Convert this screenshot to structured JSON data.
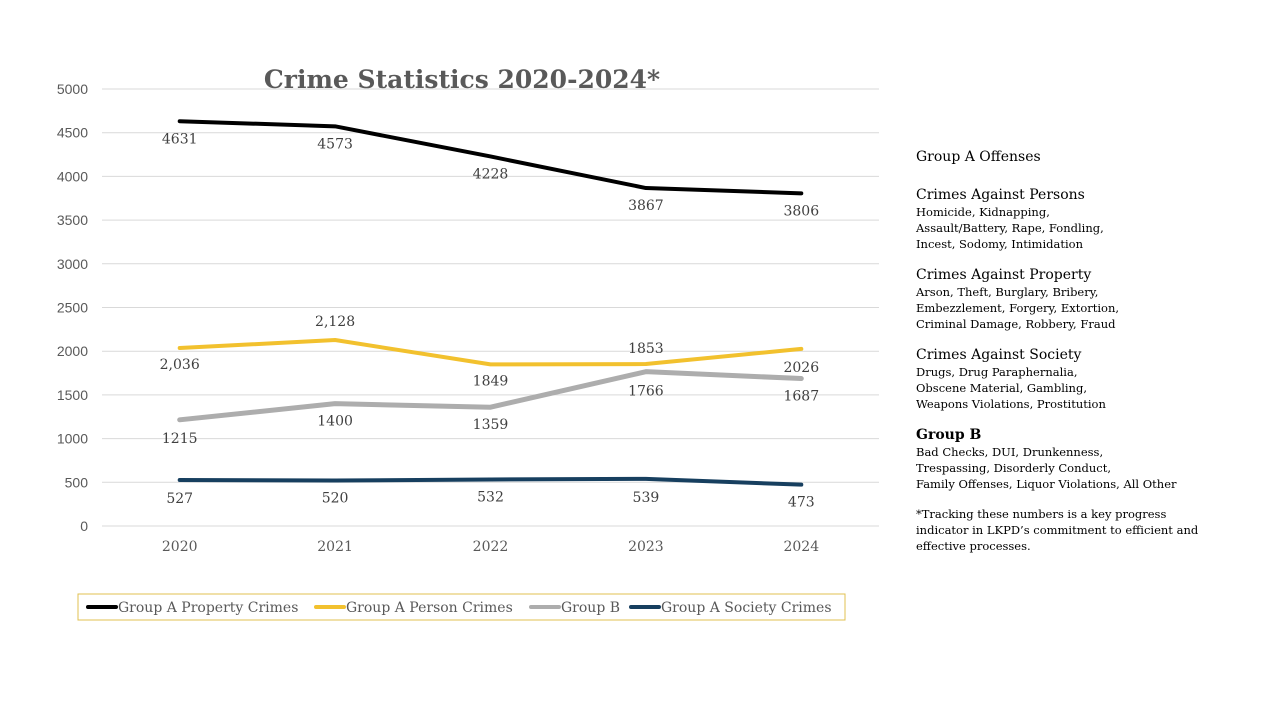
{
  "chart_data": {
    "type": "line",
    "title": "Crime Statistics 2020-2024*",
    "categories": [
      "2020",
      "2021",
      "2022",
      "2023",
      "2024"
    ],
    "yticks": [
      "0",
      "500",
      "1000",
      "1500",
      "2000",
      "2500",
      "3000",
      "3500",
      "4000",
      "4500",
      "5000"
    ],
    "ylim": [
      0,
      5000
    ],
    "grid": true,
    "legend_position": "bottom",
    "series": [
      {
        "name": "Group A Property Crimes",
        "color": "#000000",
        "values": [
          4631,
          4573,
          4228,
          3867,
          3806
        ],
        "labels": [
          "4631",
          "4573",
          "4228",
          "3867",
          "3806"
        ]
      },
      {
        "name": "Group A Person Crimes",
        "color": "#F2C12E",
        "values": [
          2036,
          2128,
          1849,
          1853,
          2026
        ],
        "labels": [
          "2,036",
          "2,128",
          "1849",
          "1853",
          "2026"
        ]
      },
      {
        "name": "Group B",
        "color": "#ADADAD",
        "values": [
          1215,
          1400,
          1359,
          1766,
          1687
        ],
        "labels": [
          "1215",
          "1400",
          "1359",
          "1766",
          "1687"
        ]
      },
      {
        "name": "Group A Society Crimes",
        "color": "#173F5F",
        "values": [
          527,
          520,
          532,
          539,
          473
        ],
        "labels": [
          "527",
          "520",
          "532",
          "539",
          "473"
        ]
      }
    ]
  },
  "sidebar": {
    "heading": "Group A Offenses",
    "sections": [
      {
        "title": "Crimes Against Persons",
        "lines": [
          "Homicide, Kidnapping,",
          "Assault/Battery, Rape, Fondling,",
          "Incest, Sodomy, Intimidation"
        ]
      },
      {
        "title": "Crimes Against Property",
        "lines": [
          "Arson, Theft, Burglary, Bribery,",
          "Embezzlement, Forgery, Extortion,",
          "Criminal Damage, Robbery, Fraud"
        ]
      },
      {
        "title": "Crimes Against Society",
        "lines": [
          "Drugs, Drug Paraphernalia,",
          "Obscene Material, Gambling,",
          "Weapons Violations, Prostitution"
        ]
      },
      {
        "title": "Group B",
        "lines": [
          "Bad Checks, DUI, Drunkenness,",
          "Trespassing, Disorderly Conduct,",
          "Family Offenses, Liquor Violations, All Other"
        ]
      }
    ],
    "note_lines": [
      "*Tracking these numbers is a key progress",
      "indicator in LKPD’s commitment to efficient and",
      "effective processes."
    ]
  }
}
